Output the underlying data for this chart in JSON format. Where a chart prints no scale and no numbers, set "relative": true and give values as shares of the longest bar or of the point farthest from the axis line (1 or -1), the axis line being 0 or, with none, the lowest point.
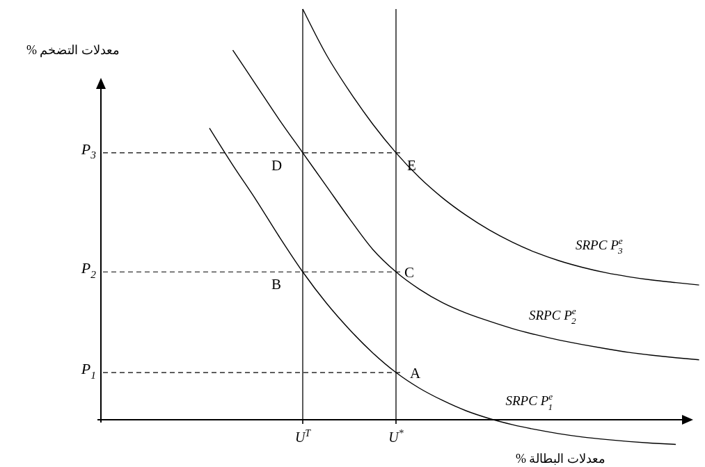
{
  "chart_data": {
    "type": "line",
    "relative": true,
    "ylabel": "معدلات التضخم %",
    "xlabel": "معدلات البطالة %",
    "categories": [
      null,
      null,
      null,
      null,
      null,
      null,
      null,
      null,
      "U$^{T}$",
      null,
      null,
      null,
      "U$^{*}$",
      null,
      null,
      null,
      null,
      null,
      null,
      null,
      null,
      null,
      null,
      null,
      null,
      null
    ],
    "series": [
      {
        "name": "SRPC  P$^{e}$$_{1}$",
        "color": "#000000",
        "values": [
          null,
          null,
          null,
          null,
          0.71,
          0.62,
          0.535,
          0.445,
          0.36,
          0.285,
          0.22,
          0.163,
          0.115,
          0.077,
          0.047,
          0.022,
          0.003,
          -0.012,
          -0.024,
          -0.034,
          -0.042,
          -0.048,
          -0.053,
          -0.057,
          -0.06,
          null
        ]
      },
      {
        "name": "SRPC  P$^{e}$$_{2}$",
        "color": "#000000",
        "values": [
          null,
          null,
          null,
          null,
          null,
          0.9,
          0.815,
          0.73,
          0.65,
          0.57,
          0.49,
          0.415,
          0.36,
          0.318,
          0.285,
          0.26,
          0.24,
          0.222,
          0.207,
          0.194,
          0.183,
          0.173,
          0.164,
          0.157,
          0.151,
          0.146
        ]
      },
      {
        "name": "SRPC  P$^{e}$$_{3}$",
        "color": "#000000",
        "values": [
          null,
          null,
          null,
          null,
          null,
          null,
          null,
          null,
          1,
          0.89,
          0.8,
          0.72,
          0.65,
          0.59,
          0.54,
          0.498,
          0.462,
          0.432,
          0.407,
          0.387,
          0.371,
          0.358,
          0.348,
          0.34,
          0.334,
          0.328
        ]
      }
    ],
    "ref_lines": [
      {
        "axis": "x",
        "value": "U$^{T}$"
      },
      {
        "axis": "x",
        "value": "U$^{*}$"
      },
      {
        "axis": "y",
        "value": 0.115,
        "label": "P$_{1}$",
        "line_style": "dashed"
      },
      {
        "axis": "y",
        "value": 0.36,
        "label": "P$_{2}$",
        "line_style": "dashed"
      },
      {
        "axis": "y",
        "value": 0.65,
        "label": "P$_{3}$",
        "line_style": "dashed"
      }
    ],
    "annotations": [
      {
        "text": "A",
        "x": "U$^{*}$",
        "y": 0.115
      },
      {
        "text": "B",
        "x": "U$^{T}$",
        "y": 0.36
      },
      {
        "text": "C",
        "x": "U$^{*}$",
        "y": 0.36
      },
      {
        "text": "D",
        "x": "U$^{T}$",
        "y": 0.65
      },
      {
        "text": "E",
        "x": "U$^{*}$",
        "y": 0.65
      }
    ],
    "legend": false,
    "marker": "none",
    "line_style": "solid"
  }
}
